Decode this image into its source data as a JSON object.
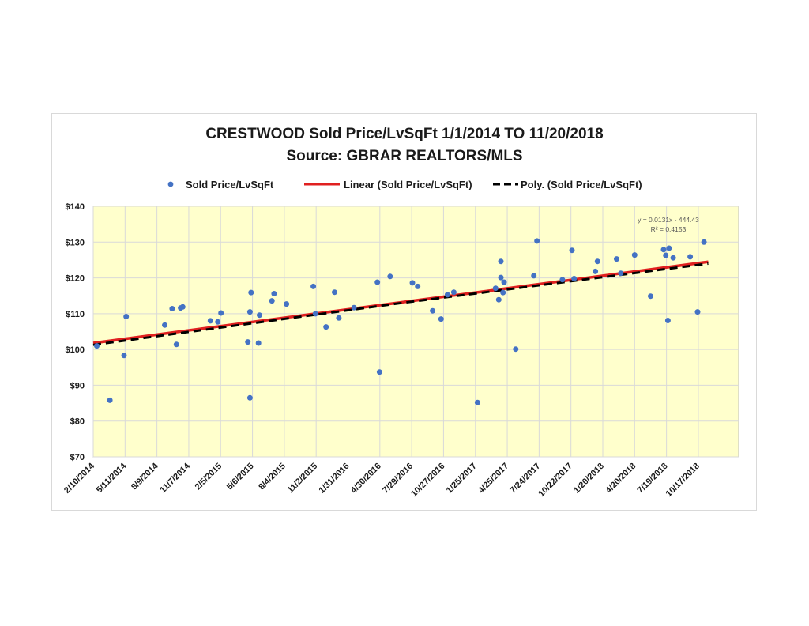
{
  "chart_data": {
    "type": "scatter",
    "title": "CRESTWOOD Sold Price/LvSqFt 1/1/2014 TO 11/20/2018",
    "subtitle": "Source: GBRAR REALTORS/MLS",
    "legend": {
      "placement": "top",
      "entries": [
        {
          "label": "Sold Price/LvSqFt",
          "kind": "marker",
          "color": "#4472c4"
        },
        {
          "label": "Linear (Sold Price/LvSqFt)",
          "kind": "solid-line",
          "color": "#e02020"
        },
        {
          "label": "Poly. (Sold Price/LvSqFt)",
          "kind": "dashed-line",
          "color": "#000000"
        }
      ]
    },
    "ylim": [
      70,
      140
    ],
    "yticks": [
      70,
      80,
      90,
      100,
      110,
      120,
      130,
      140
    ],
    "ytick_labels": [
      "$70",
      "$80",
      "$90",
      "$100",
      "$110",
      "$120",
      "$130",
      "$140"
    ],
    "xlim": [
      "2014-02-10",
      "2019-02-08"
    ],
    "xticks": [
      "2014-02-10",
      "2014-05-11",
      "2014-08-09",
      "2014-11-07",
      "2015-02-05",
      "2015-05-06",
      "2015-08-04",
      "2015-11-02",
      "2016-01-31",
      "2016-04-30",
      "2016-07-29",
      "2016-10-27",
      "2017-01-25",
      "2017-04-25",
      "2017-07-24",
      "2017-10-22",
      "2018-01-20",
      "2018-04-20",
      "2018-07-19",
      "2018-10-17"
    ],
    "xtick_labels": [
      "2/10/2014",
      "5/11/2014",
      "8/9/2014",
      "11/7/2014",
      "2/5/2015",
      "5/6/2015",
      "8/4/2015",
      "11/2/2015",
      "1/31/2016",
      "4/30/2016",
      "7/29/2016",
      "10/27/2016",
      "1/25/2017",
      "4/25/2017",
      "7/24/2017",
      "10/22/2017",
      "1/20/2018",
      "4/20/2018",
      "7/19/2018",
      "10/17/2018"
    ],
    "grid": {
      "horizontal": true,
      "vertical": true
    },
    "plot_background": "#ffffcc",
    "series": [
      {
        "name": "Sold Price/LvSqFt",
        "color": "#4472c4",
        "points": [
          {
            "x": "2014-02-20",
            "y": 101.0
          },
          {
            "x": "2014-03-29",
            "y": 85.8
          },
          {
            "x": "2014-05-08",
            "y": 98.3
          },
          {
            "x": "2014-05-14",
            "y": 109.2
          },
          {
            "x": "2014-08-31",
            "y": 106.8
          },
          {
            "x": "2014-09-21",
            "y": 111.4
          },
          {
            "x": "2014-10-03",
            "y": 101.4
          },
          {
            "x": "2014-10-15",
            "y": 111.6
          },
          {
            "x": "2014-10-21",
            "y": 111.9
          },
          {
            "x": "2015-01-07",
            "y": 108.0
          },
          {
            "x": "2015-01-28",
            "y": 107.7
          },
          {
            "x": "2015-02-06",
            "y": 110.2
          },
          {
            "x": "2015-04-23",
            "y": 102.1
          },
          {
            "x": "2015-04-29",
            "y": 110.5
          },
          {
            "x": "2015-04-29",
            "y": 86.5
          },
          {
            "x": "2015-05-02",
            "y": 115.9
          },
          {
            "x": "2015-05-23",
            "y": 101.8
          },
          {
            "x": "2015-05-26",
            "y": 109.6
          },
          {
            "x": "2015-06-30",
            "y": 113.6
          },
          {
            "x": "2015-07-06",
            "y": 115.6
          },
          {
            "x": "2015-08-10",
            "y": 112.7
          },
          {
            "x": "2015-10-25",
            "y": 117.6
          },
          {
            "x": "2015-10-31",
            "y": 110.0
          },
          {
            "x": "2015-11-30",
            "y": 106.3
          },
          {
            "x": "2015-12-24",
            "y": 116.0
          },
          {
            "x": "2016-01-05",
            "y": 108.8
          },
          {
            "x": "2016-02-17",
            "y": 111.7
          },
          {
            "x": "2016-04-23",
            "y": 118.8
          },
          {
            "x": "2016-04-29",
            "y": 93.7
          },
          {
            "x": "2016-05-29",
            "y": 120.4
          },
          {
            "x": "2016-07-31",
            "y": 118.6
          },
          {
            "x": "2016-08-15",
            "y": 117.6
          },
          {
            "x": "2016-09-26",
            "y": 110.8
          },
          {
            "x": "2016-10-20",
            "y": 108.5
          },
          {
            "x": "2016-11-07",
            "y": 115.3
          },
          {
            "x": "2016-11-25",
            "y": 116.0
          },
          {
            "x": "2017-01-31",
            "y": 85.2
          },
          {
            "x": "2017-03-23",
            "y": 117.1
          },
          {
            "x": "2017-04-01",
            "y": 113.9
          },
          {
            "x": "2017-04-07",
            "y": 124.6
          },
          {
            "x": "2017-04-07",
            "y": 120.1
          },
          {
            "x": "2017-04-13",
            "y": 115.9
          },
          {
            "x": "2017-04-16",
            "y": 118.8
          },
          {
            "x": "2017-05-19",
            "y": 100.1
          },
          {
            "x": "2017-07-09",
            "y": 120.6
          },
          {
            "x": "2017-07-18",
            "y": 130.3
          },
          {
            "x": "2017-09-28",
            "y": 119.5
          },
          {
            "x": "2017-10-25",
            "y": 127.7
          },
          {
            "x": "2017-10-31",
            "y": 119.8
          },
          {
            "x": "2017-12-30",
            "y": 121.8
          },
          {
            "x": "2018-01-05",
            "y": 124.6
          },
          {
            "x": "2018-02-28",
            "y": 125.3
          },
          {
            "x": "2018-03-12",
            "y": 121.3
          },
          {
            "x": "2018-04-20",
            "y": 126.4
          },
          {
            "x": "2018-06-04",
            "y": 114.9
          },
          {
            "x": "2018-07-11",
            "y": 127.9
          },
          {
            "x": "2018-07-17",
            "y": 126.3
          },
          {
            "x": "2018-07-23",
            "y": 108.1
          },
          {
            "x": "2018-07-26",
            "y": 128.3
          },
          {
            "x": "2018-08-07",
            "y": 125.6
          },
          {
            "x": "2018-09-24",
            "y": 125.9
          },
          {
            "x": "2018-10-15",
            "y": 110.5
          },
          {
            "x": "2018-11-02",
            "y": 130.0
          }
        ]
      },
      {
        "name": "Linear (Sold Price/LvSqFt)",
        "type": "line",
        "color": "#e02020",
        "points": [
          {
            "x": "2014-02-10",
            "y": 101.8
          },
          {
            "x": "2018-11-14",
            "y": 124.5
          }
        ]
      },
      {
        "name": "Poly. (Sold Price/LvSqFt)",
        "type": "line",
        "dashed": true,
        "color": "#000000",
        "points": [
          {
            "x": "2014-02-10",
            "y": 101.3
          },
          {
            "x": "2016-07-01",
            "y": 113.0
          },
          {
            "x": "2018-11-14",
            "y": 124.0
          }
        ]
      }
    ],
    "annotations": [
      "y = 0.0131x - 444.43",
      "R² = 0.4153"
    ]
  }
}
